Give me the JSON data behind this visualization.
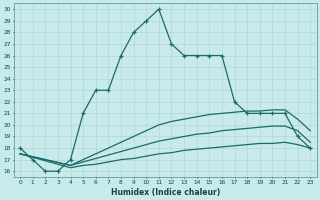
{
  "xlabel": "Humidex (Indice chaleur)",
  "bg_color": "#c8eaea",
  "line_color": "#1a6b6b",
  "grid_color": "#b0d8d8",
  "xlim": [
    -0.5,
    23.5
  ],
  "ylim": [
    15.5,
    30.5
  ],
  "xticks": [
    0,
    1,
    2,
    3,
    4,
    5,
    6,
    7,
    8,
    9,
    10,
    11,
    12,
    13,
    14,
    15,
    16,
    17,
    18,
    19,
    20,
    21,
    22,
    23
  ],
  "yticks": [
    16,
    17,
    18,
    19,
    20,
    21,
    22,
    23,
    24,
    25,
    26,
    27,
    28,
    29,
    30
  ],
  "line1_x": [
    0,
    1,
    2,
    3,
    4,
    5,
    6,
    7,
    8,
    9,
    10,
    11,
    12,
    13,
    14,
    15,
    16,
    17,
    18,
    19,
    20,
    21,
    22,
    23
  ],
  "line1_y": [
    18,
    17,
    16,
    16,
    17,
    21,
    23,
    23,
    26,
    28,
    29,
    30,
    27,
    26,
    26,
    26,
    26,
    22,
    21,
    21,
    21,
    21,
    19,
    18
  ],
  "line2_x": [
    0,
    4,
    5,
    6,
    7,
    8,
    9,
    10,
    11,
    12,
    13,
    14,
    15,
    16,
    17,
    18,
    19,
    20,
    21,
    22,
    23
  ],
  "line2_y": [
    17.5,
    16.5,
    17.0,
    17.5,
    18.0,
    18.5,
    19.0,
    19.5,
    20.0,
    20.3,
    20.5,
    20.7,
    20.9,
    21.0,
    21.1,
    21.2,
    21.2,
    21.3,
    21.3,
    20.5,
    19.5
  ],
  "line3_x": [
    0,
    4,
    5,
    6,
    7,
    8,
    9,
    10,
    11,
    12,
    13,
    14,
    15,
    16,
    17,
    18,
    19,
    20,
    21,
    22,
    23
  ],
  "line3_y": [
    17.5,
    16.5,
    16.8,
    17.1,
    17.4,
    17.7,
    18.0,
    18.3,
    18.6,
    18.8,
    19.0,
    19.2,
    19.3,
    19.5,
    19.6,
    19.7,
    19.8,
    19.9,
    19.9,
    19.5,
    18.5
  ],
  "line4_x": [
    0,
    4,
    5,
    6,
    7,
    8,
    9,
    10,
    11,
    12,
    13,
    14,
    15,
    16,
    17,
    18,
    19,
    20,
    21,
    22,
    23
  ],
  "line4_y": [
    17.5,
    16.3,
    16.5,
    16.6,
    16.8,
    17.0,
    17.1,
    17.3,
    17.5,
    17.6,
    17.8,
    17.9,
    18.0,
    18.1,
    18.2,
    18.3,
    18.4,
    18.4,
    18.5,
    18.3,
    18.0
  ]
}
